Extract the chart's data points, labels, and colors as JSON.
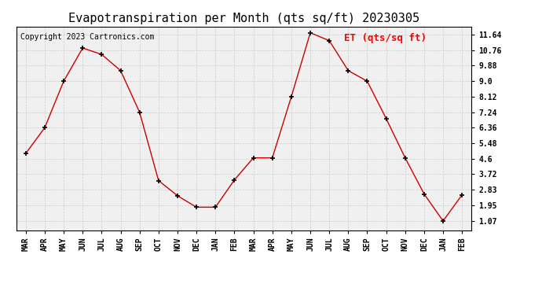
{
  "title": "Evapotranspiration per Month (qts sq/ft) 20230305",
  "copyright": "Copyright 2023 Cartronics.com",
  "legend_label": "ET (qts/sq ft)",
  "months": [
    "MAR",
    "APR",
    "MAY",
    "JUN",
    "JUL",
    "AUG",
    "SEP",
    "OCT",
    "NOV",
    "DEC",
    "JAN",
    "FEB",
    "MAR",
    "APR",
    "MAY",
    "JUN",
    "JUL",
    "AUG",
    "SEP",
    "OCT",
    "NOV",
    "DEC",
    "JAN",
    "FEB"
  ],
  "values": [
    4.9,
    6.36,
    9.0,
    10.88,
    10.52,
    9.6,
    7.24,
    3.36,
    2.5,
    1.85,
    1.85,
    3.4,
    4.65,
    4.65,
    8.12,
    11.75,
    11.3,
    9.6,
    9.0,
    6.88,
    4.65,
    2.6,
    1.07,
    2.55
  ],
  "line_color": "#cc0000",
  "marker": "+",
  "marker_color": "#000000",
  "background_color": "#ffffff",
  "plot_bg_color": "#f0f0f0",
  "grid_color": "#cccccc",
  "yticks": [
    1.07,
    1.95,
    2.83,
    3.72,
    4.6,
    5.48,
    6.36,
    7.24,
    8.12,
    9.0,
    9.88,
    10.76,
    11.64
  ],
  "ylim": [
    0.55,
    12.1
  ],
  "title_fontsize": 11,
  "axis_fontsize": 7,
  "legend_fontsize": 9,
  "copyright_fontsize": 7
}
